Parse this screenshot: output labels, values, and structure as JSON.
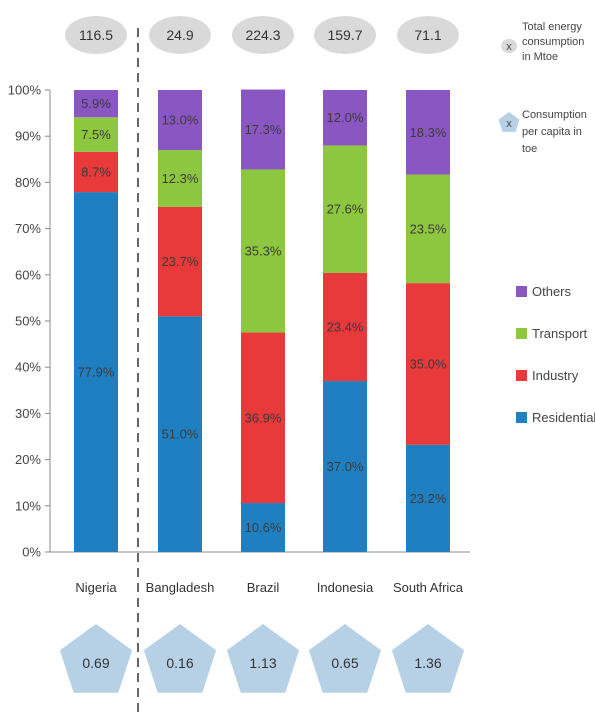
{
  "chart_data": {
    "type": "bar",
    "stacked": true,
    "normalized": true,
    "categories": [
      "Nigeria",
      "Bangladesh",
      "Brazil",
      "Indonesia",
      "South Africa"
    ],
    "series": [
      {
        "name": "Residential",
        "color": "#1f7fc1",
        "values": [
          77.9,
          51.0,
          10.6,
          37.0,
          23.2
        ],
        "labels": [
          "77.9%",
          "51.0%",
          "10.6%",
          "37.0%",
          "23.2%"
        ]
      },
      {
        "name": "Industry",
        "color": "#e8393b",
        "values": [
          8.7,
          23.7,
          36.9,
          23.4,
          35.0
        ],
        "labels": [
          "8.7%",
          "23.7%",
          "36.9%",
          "23.4%",
          "35.0%"
        ]
      },
      {
        "name": "Transport",
        "color": "#8dc63f",
        "values": [
          7.5,
          12.3,
          35.3,
          27.6,
          23.5
        ],
        "labels": [
          "7.5%",
          "12.3%",
          "35.3%",
          "27.6%",
          "23.5%"
        ]
      },
      {
        "name": "Others",
        "color": "#8a56c2",
        "values": [
          5.9,
          13.0,
          17.3,
          12.0,
          18.3
        ],
        "labels": [
          "5.9%",
          "13.0%",
          "17.3%",
          "12.0%",
          "18.3%"
        ]
      }
    ],
    "ylim": [
      0,
      100
    ],
    "yticks": [
      "0%",
      "10%",
      "20%",
      "30%",
      "40%",
      "50%",
      "60%",
      "70%",
      "80%",
      "90%",
      "100%"
    ],
    "total_energy_mtoe": [
      "116.5",
      "24.9",
      "224.3",
      "159.7",
      "71.1"
    ],
    "consumption_per_capita_toe": [
      "0.69",
      "0.16",
      "1.13",
      "0.65",
      "1.36"
    ],
    "legend_order": [
      "Others",
      "Transport",
      "Industry",
      "Residential"
    ],
    "legend_position": "right",
    "grid": false,
    "key": {
      "marker": "x",
      "total_label_lines": [
        "Total energy",
        "consumption",
        "in Mtoe"
      ],
      "percap_label_lines": [
        "Consumption",
        "per capita in",
        "toe"
      ]
    }
  }
}
